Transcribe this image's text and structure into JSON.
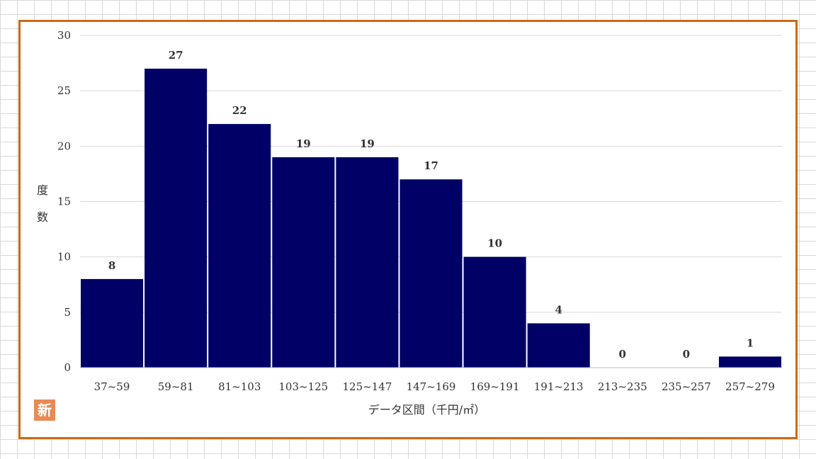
{
  "chart_data": {
    "type": "bar",
    "categories": [
      "37~59",
      "59~81",
      "81~103",
      "103~125",
      "125~147",
      "147~169",
      "169~191",
      "191~213",
      "213~235",
      "235~257",
      "257~279"
    ],
    "values": [
      8,
      27,
      22,
      19,
      19,
      17,
      10,
      4,
      0,
      0,
      1
    ],
    "xlabel": "データ区間（千円/㎡）",
    "ylabel": "度数",
    "ylim": [
      0,
      30
    ],
    "yticks": [
      0,
      5,
      10,
      15,
      20,
      25,
      30
    ],
    "bar_color": "#000066",
    "grid": true,
    "legend": "none"
  },
  "badge": {
    "text": "新",
    "color": "#e98a55"
  },
  "frame": {
    "border_color": "#cc6a14"
  }
}
